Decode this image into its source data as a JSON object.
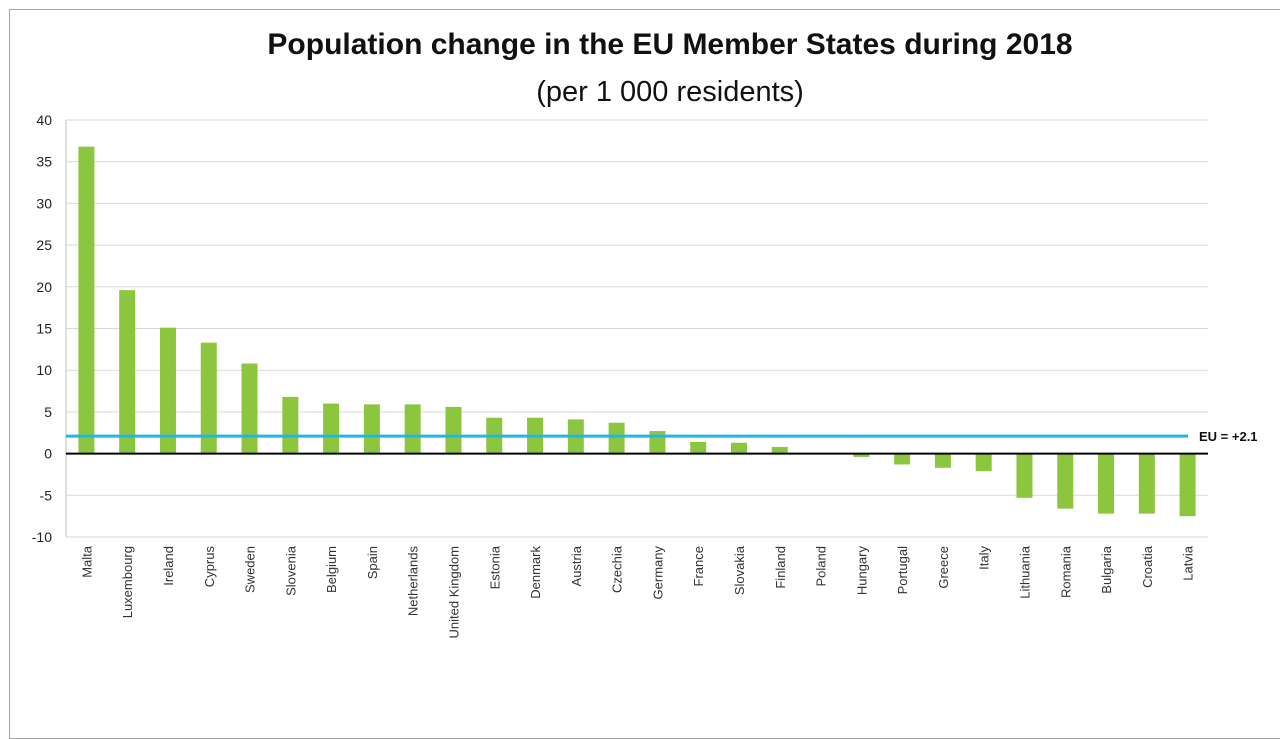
{
  "chart_data": {
    "type": "bar",
    "title": "Population change in the EU Member States during 2018",
    "subtitle": "(per 1 000 residents)",
    "xlabel": "",
    "ylabel": "",
    "ylim": [
      -10,
      40
    ],
    "yticks": [
      40,
      35,
      30,
      25,
      20,
      15,
      10,
      5,
      0,
      -5,
      -10
    ],
    "grid": true,
    "categories": [
      "Malta",
      "Luxembourg",
      "Ireland",
      "Cyprus",
      "Sweden",
      "Slovenia",
      "Belgium",
      "Spain",
      "Netherlands",
      "United Kingdom",
      "Estonia",
      "Denmark",
      "Austria",
      "Czechia",
      "Germany",
      "France",
      "Slovakia",
      "Finland",
      "Poland",
      "Hungary",
      "Portugal",
      "Greece",
      "Italy",
      "Lithuania",
      "Romania",
      "Bulgaria",
      "Croatia",
      "Latvia"
    ],
    "values": [
      36.8,
      19.6,
      15.1,
      13.3,
      10.8,
      6.8,
      6.0,
      5.9,
      5.9,
      5.6,
      4.3,
      4.3,
      4.1,
      3.7,
      2.7,
      1.4,
      1.3,
      0.8,
      0.0,
      -0.4,
      -1.3,
      -1.7,
      -2.1,
      -5.3,
      -6.6,
      -7.2,
      -7.2,
      -7.5
    ],
    "bar_color": "#8cc63f",
    "reference_line": {
      "label": "EU = +2.1",
      "value": 2.1,
      "color": "#1fb6e8"
    }
  }
}
